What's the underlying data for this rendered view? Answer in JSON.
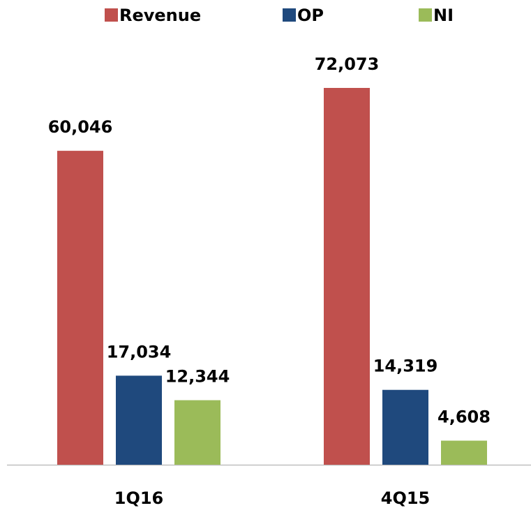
{
  "chart_data": {
    "type": "bar",
    "categories": [
      "1Q16",
      "4Q15"
    ],
    "series": [
      {
        "name": "Revenue",
        "color": "#c0504d",
        "values": [
          60046,
          72073
        ],
        "value_labels": [
          "60,046",
          "72,073"
        ]
      },
      {
        "name": "OP",
        "color": "#1f497d",
        "values": [
          17034,
          14319
        ],
        "value_labels": [
          "17,034",
          "14,319"
        ]
      },
      {
        "name": "NI",
        "color": "#9bbb59",
        "values": [
          12344,
          4608
        ],
        "value_labels": [
          "12,344",
          "4,608"
        ]
      }
    ],
    "legend": "top"
  }
}
